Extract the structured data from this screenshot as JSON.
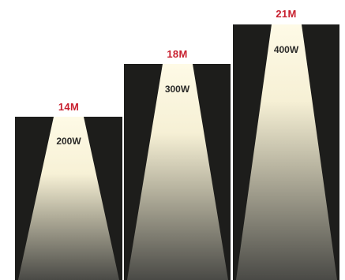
{
  "beams": [
    {
      "height": "14M",
      "power": "200W"
    },
    {
      "height": "18M",
      "power": "300W"
    },
    {
      "height": "21M",
      "power": "400W"
    }
  ],
  "colors": {
    "background": "#1d1d1b",
    "beam_top": "#fdf7df",
    "beam_bottom": "#474744",
    "height_label": "#c8202f",
    "power_label": "#2a2a28"
  }
}
